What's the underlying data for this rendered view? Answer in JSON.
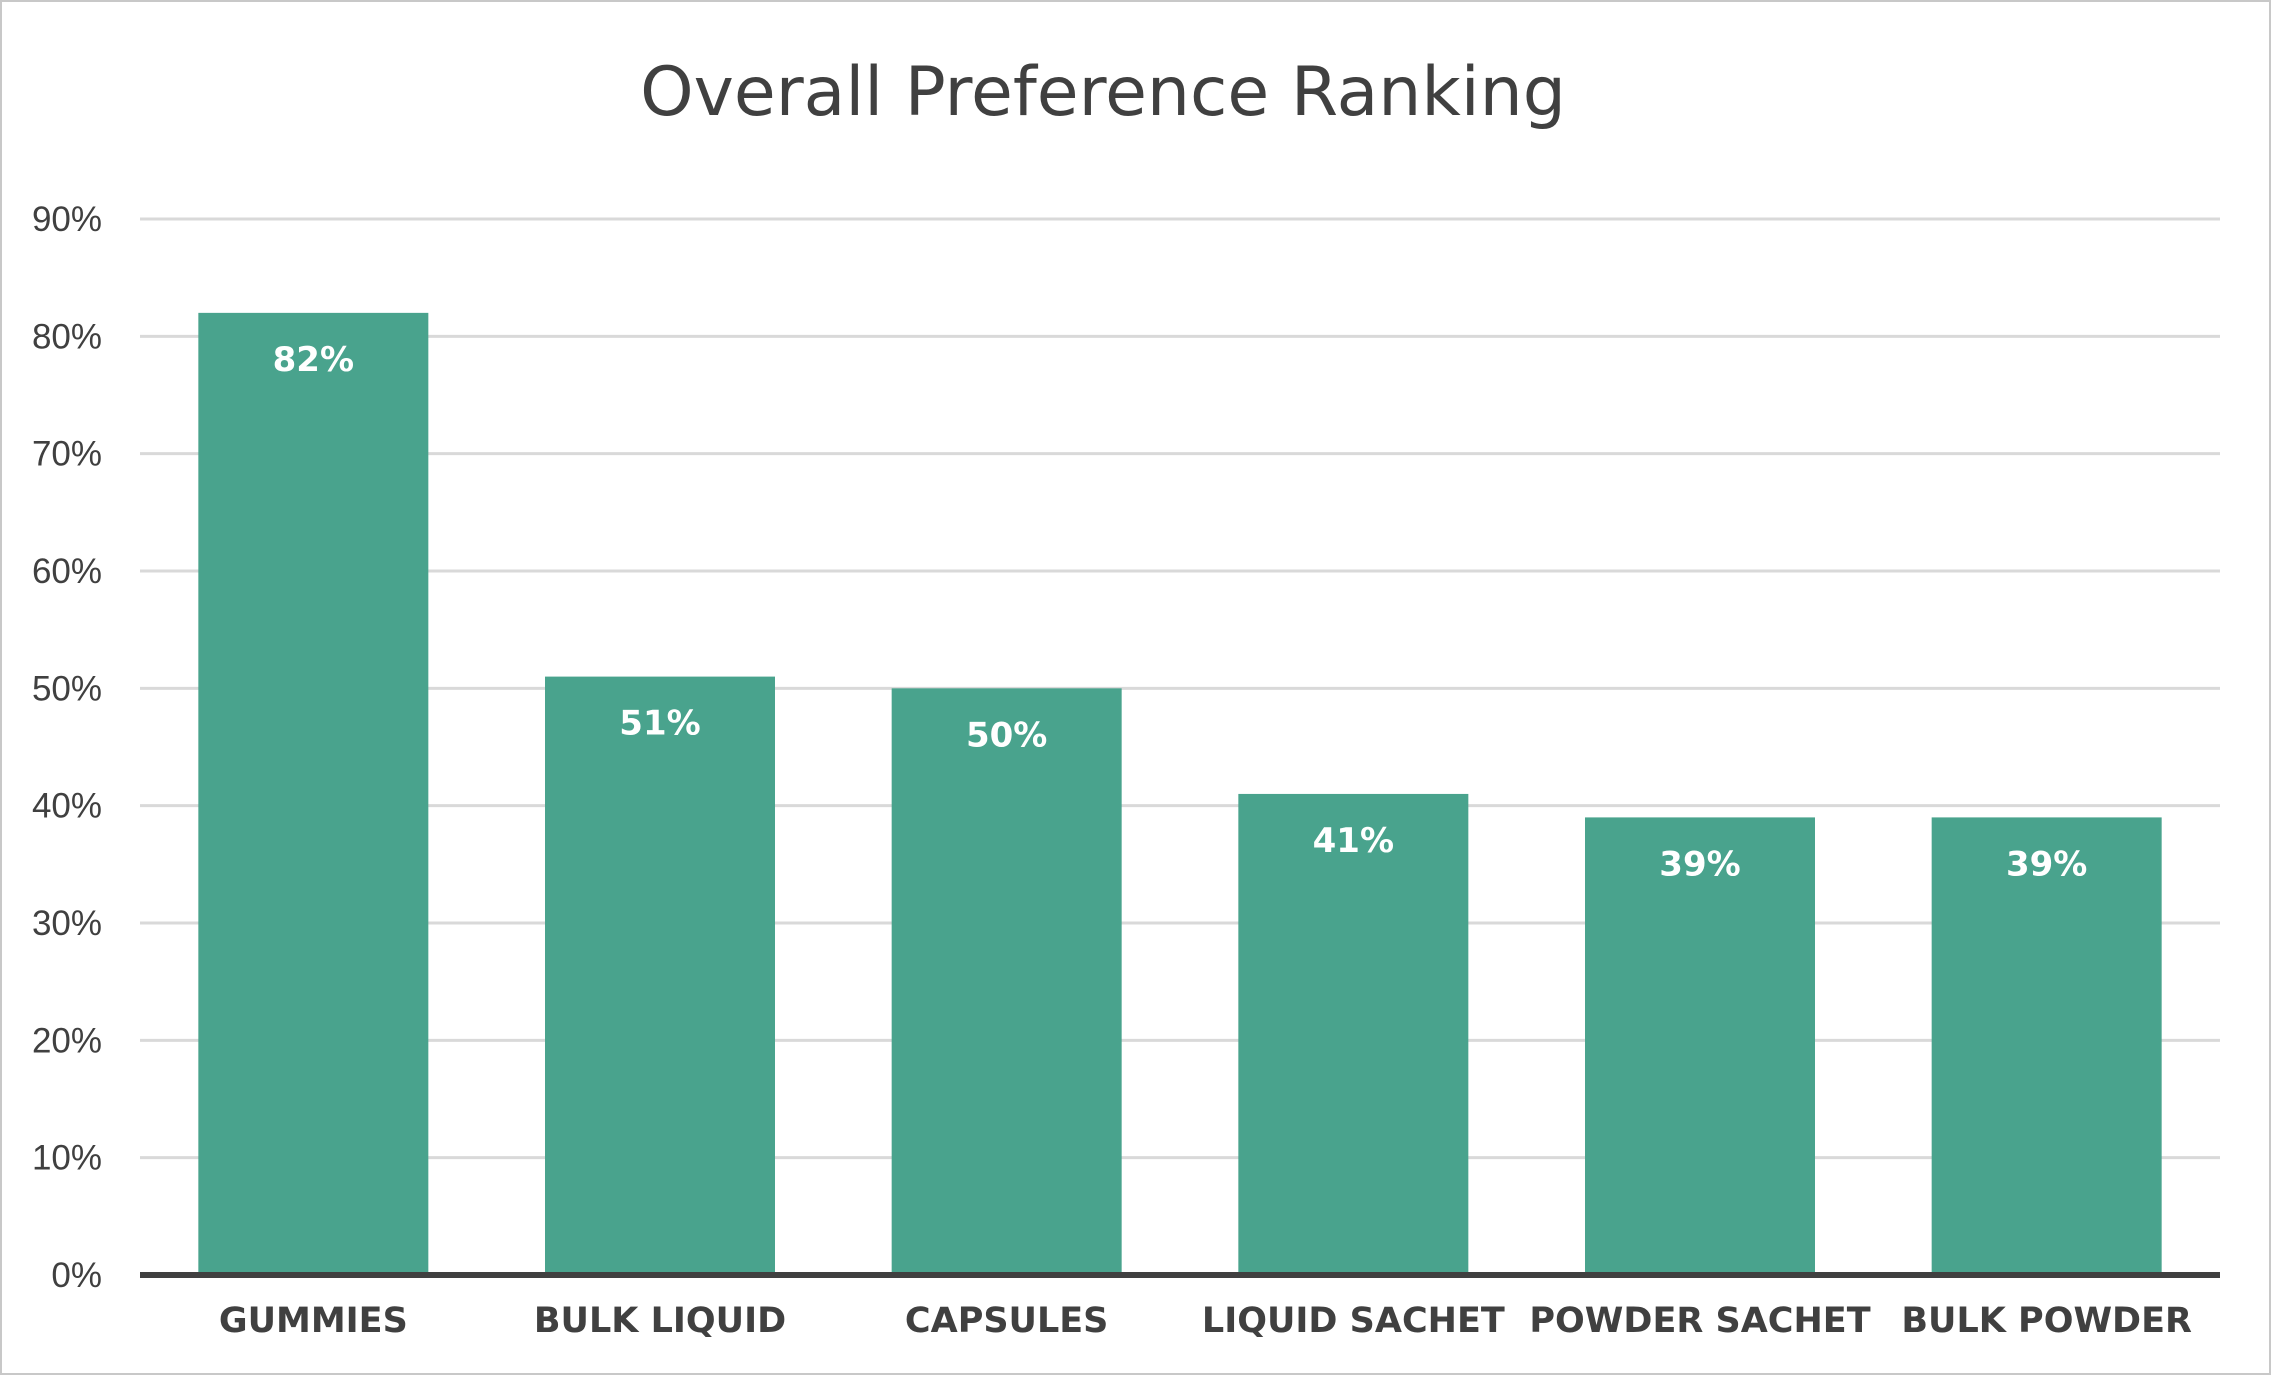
{
  "chart_data": {
    "type": "bar",
    "title": "Overall Preference Ranking",
    "xlabel": "",
    "ylabel": "",
    "categories": [
      "GUMMIES",
      "BULK LIQUID",
      "CAPSULES",
      "LIQUID SACHET",
      "POWDER SACHET",
      "BULK POWDER"
    ],
    "values": [
      82,
      51,
      50,
      41,
      39,
      39
    ],
    "data_labels": [
      "82%",
      "51%",
      "50%",
      "41%",
      "39%",
      "39%"
    ],
    "y_ticks": [
      "0%",
      "10%",
      "20%",
      "30%",
      "40%",
      "50%",
      "60%",
      "70%",
      "80%",
      "90%"
    ],
    "ylim": [
      0,
      90
    ],
    "grid": true,
    "legend": "none",
    "bar_color": "#49a38d"
  }
}
